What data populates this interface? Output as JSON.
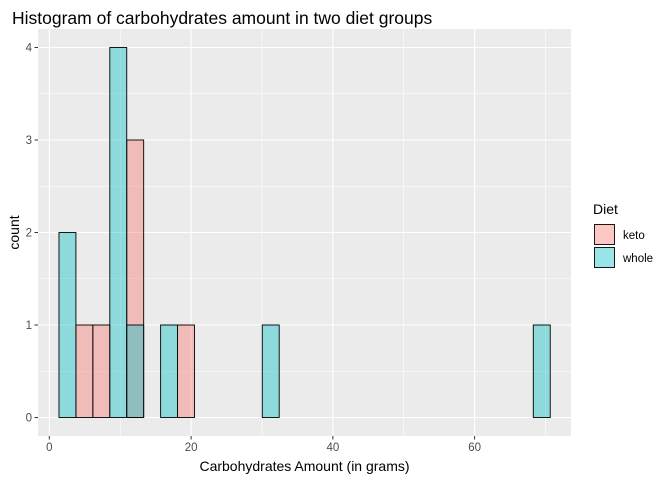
{
  "chart_data": {
    "type": "bar",
    "subtype": "histogram",
    "title": "Histogram of carbohydrates amount in two diet groups",
    "xlabel": "Carbohydrates Amount (in grams)",
    "ylabel": "count",
    "xlim": [
      -1.6,
      73.6
    ],
    "ylim": [
      -0.2,
      4.2
    ],
    "x_ticks": [
      0,
      20,
      40,
      60
    ],
    "y_ticks": [
      0,
      1,
      2,
      3,
      4
    ],
    "bin_width": 2.39,
    "bin_start": 1.36,
    "bins": 29,
    "grid": true,
    "overlay": "identity",
    "panel_background": "#ebebeb",
    "legend": {
      "title": "Diet",
      "position": "right"
    },
    "series": [
      {
        "name": "keto",
        "color": "#f8766d",
        "values": [
          0,
          1,
          1,
          0,
          3,
          0,
          0,
          1,
          0,
          0,
          0,
          0,
          0,
          0,
          0,
          0,
          0,
          0,
          0,
          0,
          0,
          0,
          0,
          0,
          0,
          0,
          0,
          0,
          0
        ]
      },
      {
        "name": "whole",
        "color": "#00bfc4",
        "values": [
          2,
          0,
          0,
          4,
          1,
          0,
          1,
          0,
          0,
          0,
          0,
          0,
          1,
          0,
          0,
          0,
          0,
          0,
          0,
          0,
          0,
          0,
          0,
          0,
          0,
          0,
          0,
          0,
          1
        ]
      }
    ]
  }
}
